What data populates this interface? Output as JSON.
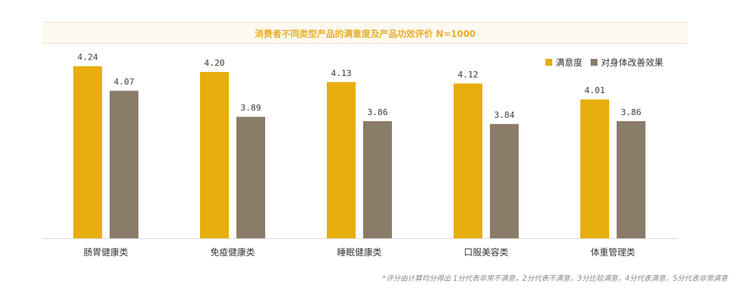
{
  "chart_data": {
    "type": "bar",
    "title": "消费者不同类型产品的满意度及产品功效评价 N=1000",
    "categories": [
      "肠胃健康类",
      "免疫健康类",
      "睡眠健康类",
      "口服美容类",
      "体重管理类"
    ],
    "series": [
      {
        "name": "满意度",
        "color": "#e8ad0e",
        "values": [
          4.24,
          4.2,
          4.13,
          4.12,
          4.01
        ],
        "labels": [
          "4.24",
          "4.20",
          "4.13",
          "4.12",
          "4.01"
        ]
      },
      {
        "name": "对身体改善效果",
        "color": "#8b7b69",
        "values": [
          4.07,
          3.89,
          3.86,
          3.84,
          3.86
        ],
        "labels": [
          "4.07",
          "3.89",
          "3.86",
          "3.84",
          "3.86"
        ]
      }
    ],
    "ylim": [
      3.05,
      4.3
    ],
    "grid": false,
    "legend": "top-right"
  },
  "footnote": "*评分由计算均分得出 1分代表非常不满意，2分代表不满意，3分比较满意，4分代表满意，5分代表非常满意"
}
